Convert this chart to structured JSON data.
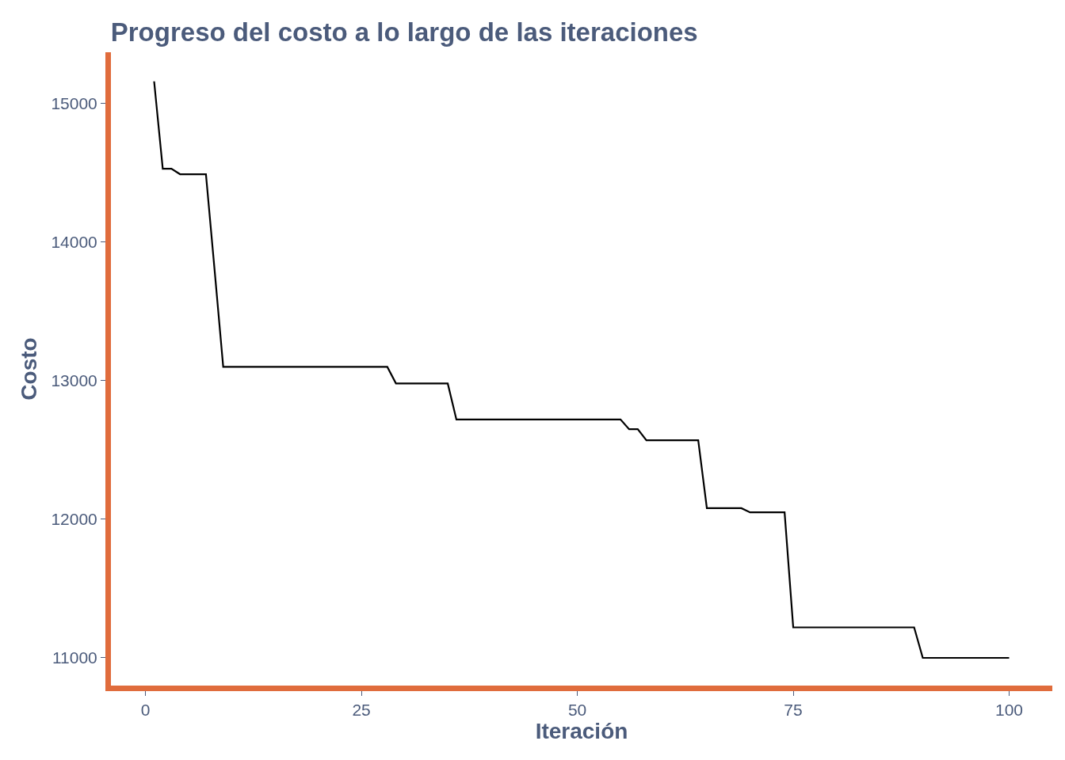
{
  "chart_data": {
    "type": "line",
    "title": "Progreso del costo a lo largo de las iteraciones",
    "xlabel": "Iteración",
    "ylabel": "Costo",
    "x": [
      1,
      2,
      3,
      4,
      5,
      6,
      7,
      8,
      9,
      10,
      11,
      12,
      13,
      14,
      15,
      16,
      17,
      18,
      19,
      20,
      21,
      22,
      23,
      24,
      25,
      26,
      27,
      28,
      29,
      30,
      31,
      32,
      33,
      34,
      35,
      36,
      37,
      38,
      39,
      40,
      41,
      42,
      43,
      44,
      45,
      46,
      47,
      48,
      49,
      50,
      51,
      52,
      53,
      54,
      55,
      56,
      57,
      58,
      59,
      60,
      61,
      62,
      63,
      64,
      65,
      66,
      67,
      68,
      69,
      70,
      71,
      72,
      73,
      74,
      75,
      76,
      77,
      78,
      79,
      80,
      81,
      82,
      83,
      84,
      85,
      86,
      87,
      88,
      89,
      90,
      91,
      92,
      93,
      94,
      95,
      96,
      97,
      98,
      99,
      100
    ],
    "series": [
      {
        "color": "#000000",
        "values": [
          15160,
          14530,
          14530,
          14490,
          14490,
          14490,
          14490,
          13800,
          13100,
          13100,
          13100,
          13100,
          13100,
          13100,
          13100,
          13100,
          13100,
          13100,
          13100,
          13100,
          13100,
          13100,
          13100,
          13100,
          13100,
          13100,
          13100,
          13100,
          12980,
          12980,
          12980,
          12980,
          12980,
          12980,
          12980,
          12720,
          12720,
          12720,
          12720,
          12720,
          12720,
          12720,
          12720,
          12720,
          12720,
          12720,
          12720,
          12720,
          12720,
          12720,
          12720,
          12720,
          12720,
          12720,
          12720,
          12650,
          12650,
          12570,
          12570,
          12570,
          12570,
          12570,
          12570,
          12570,
          12080,
          12080,
          12080,
          12080,
          12080,
          12050,
          12050,
          12050,
          12050,
          12050,
          11220,
          11220,
          11220,
          11220,
          11220,
          11220,
          11220,
          11220,
          11220,
          11220,
          11220,
          11220,
          11220,
          11220,
          11220,
          11000,
          11000,
          11000,
          11000,
          11000,
          11000,
          11000,
          11000,
          11000,
          11000,
          11000
        ]
      }
    ],
    "xlim": [
      -4,
      105
    ],
    "xticks": [
      0,
      25,
      50,
      75,
      100
    ],
    "ylim": [
      10800,
      15370
    ],
    "yticks": [
      11000,
      12000,
      13000,
      14000,
      15000
    ],
    "grid": false,
    "marker": "none",
    "line_style": "solid"
  }
}
